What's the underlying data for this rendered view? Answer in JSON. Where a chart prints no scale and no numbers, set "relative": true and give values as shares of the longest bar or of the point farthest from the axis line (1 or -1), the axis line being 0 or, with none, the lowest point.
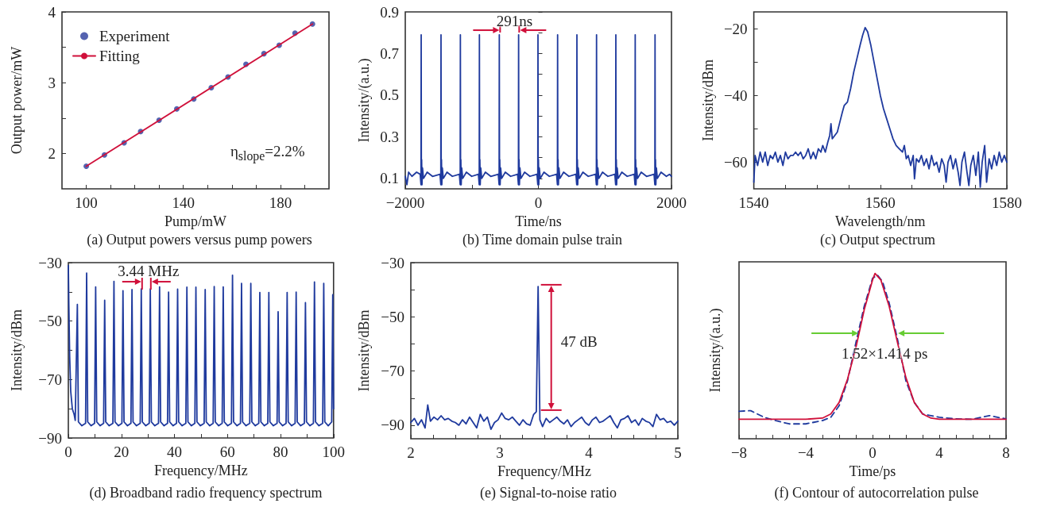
{
  "chart_data": [
    {
      "type": "scatter",
      "title": "(a) Output powers versus pump powers",
      "xlabel": "Pump/mW",
      "ylabel": "Output power/mW",
      "legend": "top left",
      "grid": false,
      "xlim": [
        90,
        200
      ],
      "xticks": [
        100,
        {
          "value": 110,
          "label": null
        },
        {
          "value": 120,
          "label": null
        },
        {
          "value": 130,
          "label": null
        },
        140,
        {
          "value": 150,
          "label": null
        },
        {
          "value": 160,
          "label": null
        },
        {
          "value": 170,
          "label": null
        },
        180,
        {
          "value": 190,
          "label": null
        }
      ],
      "ylim": [
        1.5,
        4
      ],
      "yticks": [
        2,
        {
          "value": 2.5,
          "label": null
        },
        3,
        {
          "value": 3.5,
          "label": null
        },
        4
      ],
      "annotations": [
        "η$_{slope}$=2.2%"
      ],
      "series": [
        {
          "name": "Experiment",
          "marker": "circle",
          "color": "#2b3c9c",
          "x": [
            100,
            107.5,
            115.6,
            122.4,
            130,
            137.3,
            144.3,
            151.5,
            158.4,
            165.8,
            173.2,
            179.5,
            186,
            193.2
          ],
          "values": [
            1.82,
            1.98,
            2.15,
            2.31,
            2.47,
            2.63,
            2.77,
            2.93,
            3.08,
            3.26,
            3.41,
            3.53,
            3.7,
            3.83
          ]
        },
        {
          "name": "Fitting",
          "type": "line",
          "marker": "none",
          "color": "#d0103a",
          "x": [
            100,
            193.2
          ],
          "values": [
            1.82,
            3.83
          ]
        }
      ]
    },
    {
      "type": "line",
      "title": "(b) Time domain pulse train",
      "xlabel": "Time/ns",
      "ylabel": "Intensity/(a.u.)",
      "grid": false,
      "marker": "none",
      "color": "#1f3a9e",
      "xlim": [
        -2000,
        2000
      ],
      "xticks": [
        -2000,
        {
          "value": -1000,
          "label": null
        },
        0,
        {
          "value": 1000,
          "label": null
        },
        2000
      ],
      "ylim": [
        0.05,
        0.9
      ],
      "yticks": [
        0.1,
        {
          "value": 0.2,
          "label": null
        },
        0.3,
        {
          "value": 0.4,
          "label": null
        },
        0.5,
        {
          "value": 0.6,
          "label": null
        },
        0.7,
        {
          "value": 0.8,
          "label": null
        },
        0.9
      ],
      "annotations": [
        "291ns"
      ],
      "x": [
        -2000,
        -1975,
        -1950,
        -1900,
        -1830,
        -1776,
        -1764,
        -1761,
        -1758,
        -1754,
        -1749,
        -1741,
        -1726,
        -1671,
        -1591,
        -1478,
        -1466,
        -1463,
        -1460,
        -1456,
        -1451,
        -1443,
        -1428,
        -1373,
        -1293,
        -1187,
        -1175,
        -1172,
        -1169,
        -1165,
        -1160,
        -1152,
        -1137,
        -1082,
        -1002,
        -901,
        -889,
        -886,
        -883,
        -879,
        -874,
        -866,
        -851,
        -796,
        -716,
        -602,
        -590,
        -587,
        -584,
        -580,
        -575,
        -567,
        -552,
        -497,
        -417,
        -312,
        -300,
        -297,
        -294,
        -290,
        -285,
        -277,
        -262,
        -207,
        -127,
        -21,
        -9,
        -6,
        -3,
        1,
        6,
        14,
        29,
        84,
        164,
        274,
        286,
        289,
        292,
        296,
        301,
        309,
        324,
        379,
        459,
        564,
        576,
        579,
        582,
        586,
        591,
        599,
        614,
        669,
        749,
        859,
        871,
        874,
        877,
        881,
        886,
        894,
        909,
        964,
        1044,
        1149,
        1161,
        1164,
        1167,
        1171,
        1176,
        1184,
        1199,
        1254,
        1334,
        1440,
        1452,
        1455,
        1458,
        1462,
        1467,
        1475,
        1490,
        1545,
        1625,
        1738,
        1750,
        1753,
        1756,
        1760,
        1765,
        1773,
        1788,
        1843,
        1923,
        1970,
        2000
      ],
      "values": [
        0.11,
        0.07,
        0.13,
        0.11,
        0.13,
        0.12,
        0.07,
        0.79,
        0.08,
        0.19,
        0.07,
        0.15,
        0.1,
        0.13,
        0.11,
        0.12,
        0.07,
        0.79,
        0.08,
        0.19,
        0.07,
        0.15,
        0.1,
        0.13,
        0.11,
        0.12,
        0.07,
        0.79,
        0.08,
        0.19,
        0.07,
        0.15,
        0.1,
        0.13,
        0.11,
        0.12,
        0.07,
        0.79,
        0.08,
        0.19,
        0.07,
        0.15,
        0.1,
        0.13,
        0.11,
        0.12,
        0.07,
        0.79,
        0.08,
        0.19,
        0.07,
        0.15,
        0.1,
        0.13,
        0.11,
        0.12,
        0.07,
        0.79,
        0.08,
        0.19,
        0.07,
        0.15,
        0.1,
        0.13,
        0.11,
        0.12,
        0.07,
        0.79,
        0.08,
        0.19,
        0.07,
        0.15,
        0.1,
        0.13,
        0.11,
        0.12,
        0.07,
        0.79,
        0.08,
        0.19,
        0.07,
        0.15,
        0.1,
        0.13,
        0.11,
        0.12,
        0.07,
        0.79,
        0.08,
        0.19,
        0.07,
        0.15,
        0.1,
        0.13,
        0.11,
        0.12,
        0.07,
        0.79,
        0.08,
        0.19,
        0.07,
        0.15,
        0.1,
        0.13,
        0.11,
        0.12,
        0.07,
        0.79,
        0.08,
        0.19,
        0.07,
        0.15,
        0.1,
        0.13,
        0.11,
        0.12,
        0.07,
        0.79,
        0.08,
        0.19,
        0.07,
        0.15,
        0.1,
        0.13,
        0.11,
        0.12,
        0.07,
        0.79,
        0.08,
        0.19,
        0.07,
        0.15,
        0.1,
        0.13,
        0.11,
        0.12,
        0.11
      ]
    },
    {
      "type": "line",
      "title": "(c) Output spectrum",
      "xlabel": "Wavelength/nm",
      "ylabel": "Intensity/dBm",
      "grid": false,
      "marker": "none",
      "color": "#1f3a9e",
      "xlim": [
        1540,
        1580
      ],
      "xticks": [
        1540,
        {
          "value": 1545,
          "label": null
        },
        {
          "value": 1550,
          "label": null
        },
        {
          "value": 1555,
          "label": null
        },
        1560,
        {
          "value": 1565,
          "label": null
        },
        {
          "value": 1570,
          "label": null
        },
        {
          "value": 1575,
          "label": null
        },
        1580
      ],
      "ylim": [
        -68,
        -15
      ],
      "yticks": [
        -20,
        {
          "value": -30,
          "label": null
        },
        -40,
        {
          "value": -50,
          "label": null
        },
        -60
      ],
      "x": [
        1540,
        1540.2,
        1540.6,
        1541,
        1541.4,
        1541.8,
        1542.2,
        1542.6,
        1543,
        1543.4,
        1543.8,
        1544.2,
        1544.6,
        1545,
        1545.4,
        1545.8,
        1546.2,
        1546.6,
        1547,
        1547.4,
        1547.8,
        1548.2,
        1548.6,
        1549,
        1549.4,
        1549.8,
        1550.2,
        1550.6,
        1550.9,
        1551.3,
        1551.7,
        1552,
        1552.2,
        1552.4,
        1552.8,
        1553.2,
        1553.6,
        1554,
        1554.3,
        1554.8,
        1555.3,
        1555.8,
        1556.3,
        1556.8,
        1557.2,
        1557.6,
        1558,
        1558.5,
        1559,
        1559.5,
        1560,
        1560.5,
        1561,
        1561.5,
        1562,
        1562.5,
        1563,
        1563.5,
        1563.8,
        1564.1,
        1564.4,
        1564.8,
        1565.2,
        1565.4,
        1565.7,
        1566.1,
        1566.5,
        1566.9,
        1567.3,
        1567.7,
        1568.1,
        1568.5,
        1568.9,
        1569.3,
        1569.7,
        1570.1,
        1570.4,
        1570.7,
        1571.1,
        1571.5,
        1571.9,
        1572.3,
        1572.6,
        1572.9,
        1573.3,
        1573.7,
        1574,
        1574.3,
        1574.7,
        1575.1,
        1575.5,
        1575.8,
        1576.1,
        1576.5,
        1576.8,
        1577.2,
        1577.6,
        1578,
        1578.4,
        1578.8,
        1579.2,
        1579.6,
        1580
      ],
      "values": [
        -66,
        -58,
        -61,
        -57,
        -60,
        -57,
        -61,
        -58,
        -59,
        -57,
        -60,
        -58,
        -61,
        -57,
        -59,
        -58,
        -58,
        -57,
        -58,
        -57,
        -59,
        -58,
        -56,
        -59,
        -57,
        -59,
        -56,
        -57,
        -55,
        -57,
        -54,
        -52,
        -48.5,
        -53,
        -52,
        -51,
        -48,
        -45,
        -43,
        -42,
        -38,
        -33,
        -29,
        -25,
        -22,
        -19.7,
        -21,
        -25,
        -30,
        -35,
        -40,
        -44,
        -47,
        -50,
        -53,
        -55,
        -56,
        -57,
        -55,
        -59,
        -58,
        -61,
        -58,
        -65,
        -59,
        -60,
        -58,
        -61,
        -59,
        -62,
        -58,
        -61,
        -60,
        -63,
        -59,
        -61,
        -66,
        -60,
        -58,
        -62,
        -59,
        -63,
        -67,
        -60,
        -57,
        -63,
        -67,
        -61,
        -58,
        -64,
        -57,
        -67.5,
        -60,
        -55,
        -66,
        -59,
        -62,
        -58,
        -61,
        -57,
        -60,
        -58,
        -60
      ]
    },
    {
      "type": "line",
      "title": "(d) Broadband radio frequency spectrum",
      "xlabel": "Frequency/MHz",
      "ylabel": "Intensity/dBm",
      "grid": false,
      "marker": "none",
      "color": "#1f3a9e",
      "xlim": [
        0,
        100
      ],
      "xticks": [
        0,
        {
          "value": 10,
          "label": null
        },
        20,
        {
          "value": 30,
          "label": null
        },
        40,
        {
          "value": 50,
          "label": null
        },
        60,
        {
          "value": 70,
          "label": null
        },
        80,
        {
          "value": 90,
          "label": null
        },
        100
      ],
      "ylim": [
        -90,
        -30
      ],
      "yticks": [
        -30,
        {
          "value": -40,
          "label": null
        },
        -50,
        {
          "value": -60,
          "label": null
        },
        -70,
        {
          "value": -80,
          "label": null
        },
        -90
      ],
      "annotations": [
        "3.44 MHz"
      ],
      "x": [
        0,
        0.2,
        0.5,
        0.9,
        1.5,
        2.2,
        2.6,
        3.4,
        3.8,
        5.1,
        6.5,
        6.9,
        7.3,
        8.6,
        9.9,
        10.3,
        10.7,
        12,
        13.3,
        13.7,
        14.1,
        15.4,
        16.8,
        17.2,
        17.6,
        18.9,
        20.2,
        20.6,
        21,
        22.3,
        23.6,
        24,
        24.4,
        25.7,
        27.1,
        27.5,
        27.9,
        29.2,
        30.5,
        30.9,
        31.3,
        32.6,
        34,
        34.4,
        34.8,
        36.1,
        37.4,
        37.8,
        38.2,
        39.5,
        40.8,
        41.2,
        41.6,
        42.9,
        44.3,
        44.7,
        45.1,
        46.4,
        47.7,
        48.1,
        48.5,
        49.8,
        51.2,
        51.6,
        52,
        53.3,
        54.6,
        55,
        55.4,
        56.7,
        58,
        58.4,
        58.8,
        60.1,
        61.5,
        61.9,
        62.3,
        63.6,
        64.9,
        65.3,
        65.7,
        67,
        68.4,
        68.8,
        69.2,
        70.5,
        71.8,
        72.2,
        72.6,
        73.9,
        75.2,
        75.6,
        76,
        77.3,
        78.7,
        79.1,
        79.5,
        80.8,
        82.1,
        82.5,
        82.9,
        84.2,
        85.5,
        85.9,
        86.3,
        87.6,
        89,
        89.4,
        89.8,
        91.1,
        92.4,
        92.8,
        93.2,
        94.5,
        95.9,
        96.3,
        96.7,
        98,
        99.3,
        99.7,
        100
      ],
      "values": [
        -31,
        -45,
        -62,
        -74,
        -80,
        -82,
        -84,
        -44.3,
        -84.5,
        -85.8,
        -85,
        -33.6,
        -84.5,
        -85.8,
        -85,
        -38.3,
        -84.5,
        -85.8,
        -85,
        -42.9,
        -84.5,
        -85.8,
        -85,
        -36.4,
        -84.5,
        -85.8,
        -85,
        -39.6,
        -84.5,
        -85.8,
        -85,
        -39.2,
        -84.5,
        -85.8,
        -85,
        -39,
        -84.5,
        -85.8,
        -85,
        -39,
        -84.5,
        -85.8,
        -85,
        -38.3,
        -84.5,
        -85.8,
        -85,
        -40.1,
        -84.5,
        -85.8,
        -85,
        -39.1,
        -84.5,
        -85.8,
        -85,
        -38.4,
        -84.5,
        -85.8,
        -85,
        -38.4,
        -84.5,
        -85.8,
        -85,
        -39.2,
        -84.5,
        -85.8,
        -85,
        -38.2,
        -84.5,
        -85.8,
        -85,
        -38.3,
        -84.5,
        -85.8,
        -85,
        -34.3,
        -84.5,
        -85.8,
        -85,
        -37.1,
        -84.5,
        -85.8,
        -85,
        -37.1,
        -84.5,
        -85.8,
        -85,
        -40.2,
        -84.5,
        -85.8,
        -85,
        -40.2,
        -84.5,
        -85.8,
        -85,
        -46.8,
        -84.5,
        -85.8,
        -85,
        -40.2,
        -84.5,
        -85.8,
        -85,
        -40.1,
        -84.5,
        -85.8,
        -85,
        -43.7,
        -84.5,
        -85.8,
        -85,
        -36.6,
        -84.5,
        -85.8,
        -85,
        -37.1,
        -84.5,
        -85.8,
        -84.5,
        -41,
        -80
      ]
    },
    {
      "type": "line",
      "title": "(e) Signal-to-noise ratio",
      "xlabel": "Frequency/MHz",
      "ylabel": "Intensity/dBm",
      "grid": false,
      "marker": "none",
      "color": "#1f3a9e",
      "xlim": [
        2,
        5
      ],
      "xticks": [
        2,
        {
          "value": 2.25,
          "label": null
        },
        {
          "value": 2.5,
          "label": null
        },
        {
          "value": 2.75,
          "label": null
        },
        3,
        {
          "value": 3.25,
          "label": null
        },
        {
          "value": 3.5,
          "label": null
        },
        {
          "value": 3.75,
          "label": null
        },
        4,
        {
          "value": 4.25,
          "label": null
        },
        {
          "value": 4.5,
          "label": null
        },
        {
          "value": 4.75,
          "label": null
        },
        5
      ],
      "ylim": [
        -95,
        -30
      ],
      "yticks": [
        -30,
        {
          "value": -40,
          "label": null
        },
        -50,
        {
          "value": -60,
          "label": null
        },
        -70,
        {
          "value": -80,
          "label": null
        },
        -90
      ],
      "annotations": [
        "47 dB"
      ],
      "x": [
        2,
        2.04,
        2.08,
        2.12,
        2.16,
        2.19,
        2.22,
        2.26,
        2.3,
        2.34,
        2.38,
        2.42,
        2.46,
        2.5,
        2.54,
        2.58,
        2.62,
        2.66,
        2.7,
        2.74,
        2.78,
        2.82,
        2.86,
        2.9,
        2.94,
        2.98,
        3.02,
        3.06,
        3.1,
        3.14,
        3.18,
        3.22,
        3.26,
        3.3,
        3.34,
        3.38,
        3.41,
        3.43,
        3.45,
        3.48,
        3.52,
        3.56,
        3.6,
        3.64,
        3.68,
        3.72,
        3.76,
        3.8,
        3.84,
        3.88,
        3.92,
        3.96,
        4,
        4.04,
        4.08,
        4.12,
        4.16,
        4.2,
        4.24,
        4.28,
        4.32,
        4.36,
        4.4,
        4.44,
        4.48,
        4.52,
        4.56,
        4.6,
        4.64,
        4.68,
        4.72,
        4.76,
        4.8,
        4.84,
        4.88,
        4.92,
        4.96,
        5
      ],
      "values": [
        -89,
        -87.5,
        -90,
        -88,
        -91,
        -82.5,
        -88.5,
        -87,
        -88,
        -86.5,
        -88,
        -87.5,
        -88.5,
        -89,
        -90,
        -88,
        -89.5,
        -87,
        -89,
        -91,
        -86,
        -88.5,
        -87,
        -91.5,
        -89,
        -88,
        -85.5,
        -87.5,
        -88,
        -87,
        -88.5,
        -90,
        -88,
        -89.5,
        -90,
        -86,
        -85,
        -38.8,
        -88,
        -90.5,
        -87.5,
        -89,
        -88,
        -87,
        -88.5,
        -89.5,
        -88,
        -90.5,
        -89,
        -88,
        -87,
        -89,
        -90,
        -88,
        -87,
        -89,
        -88.5,
        -87.5,
        -86.5,
        -89,
        -91,
        -88,
        -87.5,
        -86.5,
        -89,
        -88,
        -90,
        -87.5,
        -88.5,
        -89,
        -90.5,
        -86,
        -88,
        -87.5,
        -89,
        -88.5,
        -90,
        -88.5
      ]
    },
    {
      "type": "line",
      "title": "(f) Contour of autocorrelation pulse",
      "xlabel": "Time/ps",
      "ylabel": "Intensity/(a.u.)",
      "grid": false,
      "marker": "none",
      "relative": true,
      "xlim": [
        -8,
        8
      ],
      "xticks": [
        -8,
        {
          "value": -7,
          "label": null
        },
        {
          "value": -6,
          "label": null
        },
        {
          "value": -5,
          "label": null
        },
        -4,
        {
          "value": -3,
          "label": null
        },
        {
          "value": -2,
          "label": null
        },
        {
          "value": -1,
          "label": null
        },
        0,
        {
          "value": 1,
          "label": null
        },
        {
          "value": 2,
          "label": null
        },
        {
          "value": 3,
          "label": null
        },
        4,
        {
          "value": 5,
          "label": null
        },
        {
          "value": 6,
          "label": null
        },
        {
          "value": 7,
          "label": null
        },
        8
      ],
      "annotations": [
        "1.52×1.414 ps"
      ],
      "series": [
        {
          "color": "#1f3a9e",
          "line_style": "dashed",
          "x": [
            -8,
            -7.3,
            -6.5,
            -6,
            -5,
            -4,
            -3,
            -2.5,
            -2,
            -1.5,
            -1,
            -0.5,
            0,
            0.3,
            0.6,
            1,
            1.5,
            2,
            2.5,
            3,
            3.5,
            4,
            5,
            6,
            7,
            8
          ],
          "values": [
            0.166,
            0.17,
            0.13,
            0.115,
            0.09,
            0.09,
            0.11,
            0.13,
            0.2,
            0.35,
            0.58,
            0.8,
            0.97,
            0.99,
            0.95,
            0.82,
            0.6,
            0.35,
            0.22,
            0.15,
            0.14,
            0.13,
            0.12,
            0.118,
            0.14,
            0.12
          ]
        },
        {
          "color": "#d0103a",
          "line_style": "solid",
          "x": [
            -8,
            -4,
            -3,
            -2.5,
            -2,
            -1.5,
            -1,
            -0.5,
            0,
            0.15,
            0.5,
            1,
            1.5,
            2,
            2.5,
            3,
            3.5,
            4,
            8
          ],
          "values": [
            0.118,
            0.118,
            0.125,
            0.15,
            0.22,
            0.36,
            0.55,
            0.78,
            0.96,
            1,
            0.96,
            0.8,
            0.58,
            0.37,
            0.22,
            0.15,
            0.125,
            0.118,
            0.118
          ]
        }
      ]
    }
  ]
}
